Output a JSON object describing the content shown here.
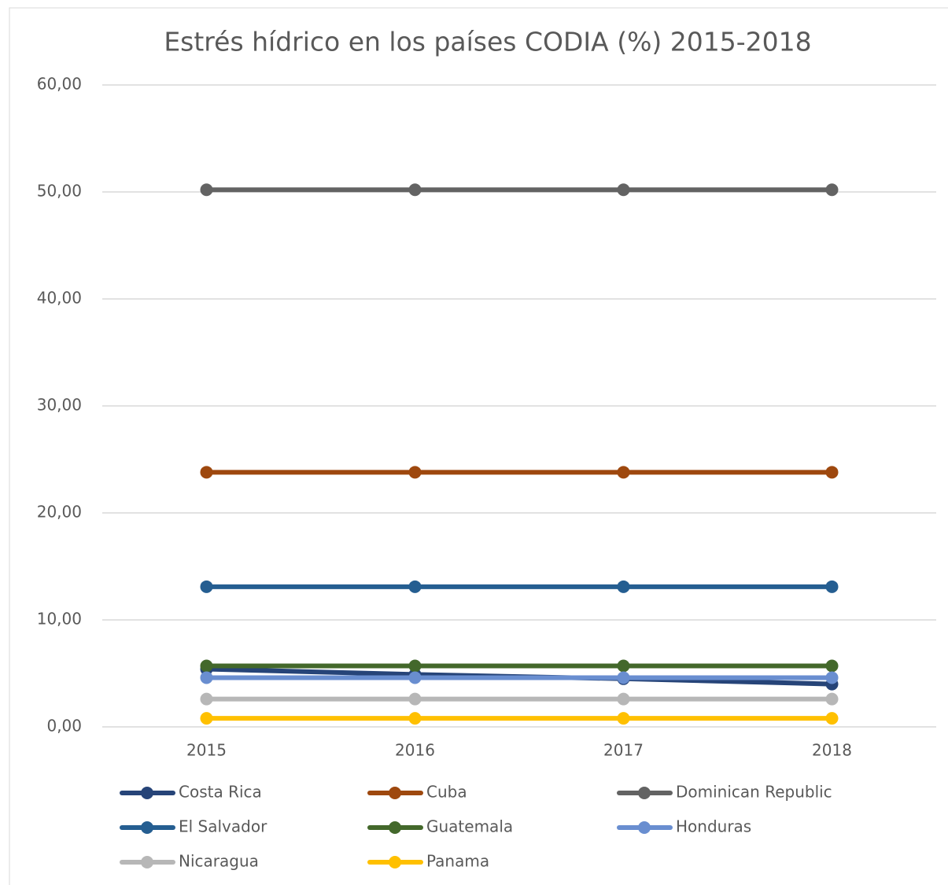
{
  "chart_data": {
    "type": "line",
    "title": "Estrés hídrico en los países CODIA (%) 2015-2018",
    "categories": [
      "2015",
      "2016",
      "2017",
      "2018"
    ],
    "series": [
      {
        "name": "Costa Rica",
        "color": "#264478",
        "values": [
          5.4,
          4.9,
          4.5,
          4.0
        ]
      },
      {
        "name": "Cuba",
        "color": "#9e480e",
        "values": [
          23.8,
          23.8,
          23.8,
          23.8
        ]
      },
      {
        "name": "Dominican Republic",
        "color": "#636363",
        "values": [
          50.2,
          50.2,
          50.2,
          50.2
        ]
      },
      {
        "name": "El Salvador",
        "color": "#255e91",
        "values": [
          13.1,
          13.1,
          13.1,
          13.1
        ]
      },
      {
        "name": "Guatemala",
        "color": "#43682b",
        "values": [
          5.7,
          5.7,
          5.7,
          5.7
        ]
      },
      {
        "name": "Honduras",
        "color": "#698ed0",
        "values": [
          4.6,
          4.6,
          4.6,
          4.6
        ]
      },
      {
        "name": "Nicaragua",
        "color": "#b7b7b7",
        "values": [
          2.6,
          2.6,
          2.6,
          2.6
        ]
      },
      {
        "name": "Panama",
        "color": "#ffc000",
        "values": [
          0.8,
          0.8,
          0.8,
          0.8
        ]
      }
    ],
    "ylim": [
      0,
      60
    ],
    "yticks": [
      {
        "value": 0,
        "label": "0,00"
      },
      {
        "value": 10,
        "label": "10,00"
      },
      {
        "value": 20,
        "label": "20,00"
      },
      {
        "value": 30,
        "label": "30,00"
      },
      {
        "value": 40,
        "label": "40,00"
      },
      {
        "value": 50,
        "label": "50,00"
      },
      {
        "value": 60,
        "label": "60,00"
      }
    ],
    "grid": true,
    "legend": "bottom"
  }
}
